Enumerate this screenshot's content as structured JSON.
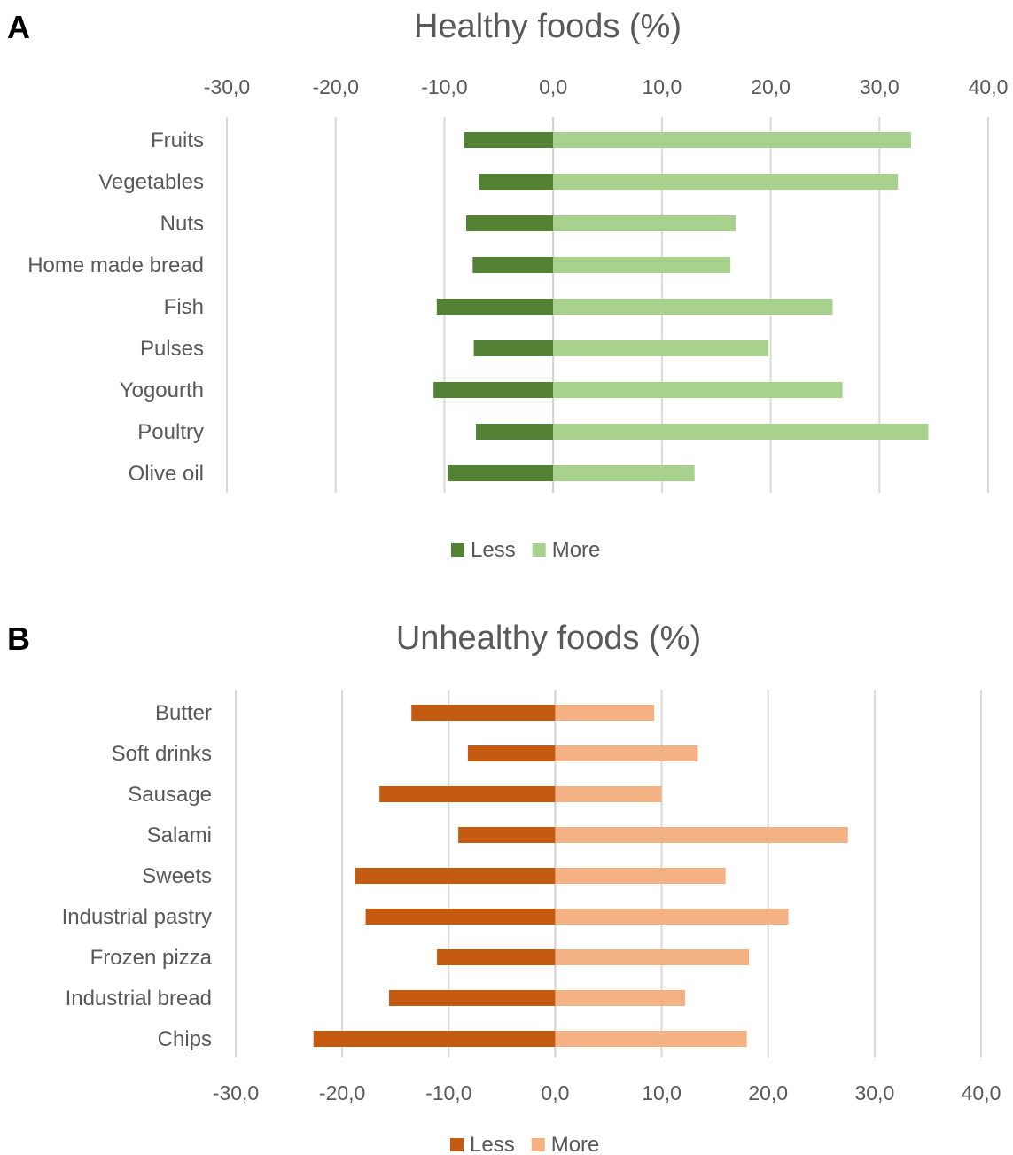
{
  "panels": [
    {
      "letter": "A",
      "chart_data": {
        "type": "bar",
        "orientation": "horizontal",
        "title": "Healthy foods (%)",
        "categories": [
          "Fruits",
          "Vegetables",
          "Nuts",
          "Home made bread",
          "Fish",
          "Pulses",
          "Yogourth",
          "Poultry",
          "Olive oil"
        ],
        "series": [
          {
            "name": "Less",
            "color": "#548235",
            "values": [
              -8.2,
              -6.8,
              -8.0,
              -7.4,
              -10.7,
              -7.3,
              -11.0,
              -7.1,
              -9.7
            ]
          },
          {
            "name": "More",
            "color": "#a9d18e",
            "values": [
              32.9,
              31.7,
              16.8,
              16.3,
              25.7,
              19.8,
              26.6,
              34.5,
              13.0
            ]
          }
        ],
        "xlim": [
          -30,
          40
        ],
        "xticks": [
          "-30,0",
          "-20,0",
          "-10,0",
          "0,0",
          "10,0",
          "20,0",
          "30,0",
          "40,0"
        ],
        "axis_position": "top",
        "grid": true,
        "legend": "bottom"
      }
    },
    {
      "letter": "B",
      "chart_data": {
        "type": "bar",
        "orientation": "horizontal",
        "title": "Unhealthy foods (%)",
        "categories": [
          "Butter",
          "Soft drinks",
          "Sausage",
          "Salami",
          "Sweets",
          "Industrial pastry",
          "Frozen pizza",
          "Industrial bread",
          "Chips"
        ],
        "series": [
          {
            "name": "Less",
            "color": "#c55a11",
            "values": [
              -13.5,
              -8.2,
              -16.5,
              -9.1,
              -18.8,
              -17.8,
              -11.1,
              -15.6,
              -22.7
            ]
          },
          {
            "name": "More",
            "color": "#f4b183",
            "values": [
              9.3,
              13.4,
              10.0,
              27.5,
              16.0,
              21.9,
              18.2,
              12.2,
              18.0
            ]
          }
        ],
        "xlim": [
          -30,
          40
        ],
        "xticks": [
          "-30,0",
          "-20,0",
          "-10,0",
          "0,0",
          "10,0",
          "20,0",
          "30,0",
          "40,0"
        ],
        "axis_position": "bottom",
        "grid": true,
        "legend": "bottom"
      }
    }
  ]
}
